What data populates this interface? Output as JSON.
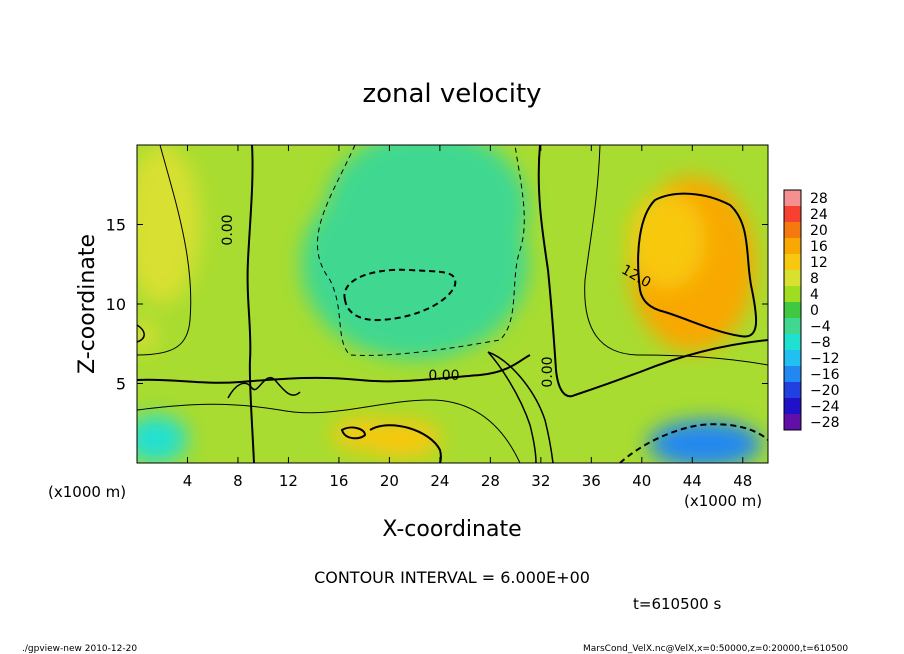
{
  "chart_data": {
    "type": "heatmap",
    "title": "zonal velocity",
    "xlabel": "X-coordinate",
    "ylabel": "Z-coordinate",
    "xlim": [
      0,
      50
    ],
    "ylim": [
      0,
      20
    ],
    "x_unit_label": "(x1000 m)",
    "z_unit_label": "(x1000 m)",
    "x_ticks": [
      "4",
      "8",
      "12",
      "16",
      "20",
      "24",
      "28",
      "32",
      "36",
      "40",
      "44",
      "48"
    ],
    "x_tick_values": [
      4,
      8,
      12,
      16,
      20,
      24,
      28,
      32,
      36,
      40,
      44,
      48
    ],
    "y_ticks": [
      "5",
      "10",
      "15"
    ],
    "y_tick_values": [
      5,
      10,
      15
    ],
    "colorbar": {
      "levels": [
        "28",
        "24",
        "20",
        "16",
        "12",
        "8",
        "4",
        "0",
        "−4",
        "−8",
        "−12",
        "−16",
        "−20",
        "−24",
        "−28"
      ],
      "colors": [
        "#f59090",
        "#f84030",
        "#f47a10",
        "#f8a800",
        "#f8c810",
        "#d8e030",
        "#a0dc20",
        "#40c840",
        "#40d890",
        "#20e0d0",
        "#20c0f0",
        "#2088f0",
        "#2040e0",
        "#2010c8",
        "#6010a8"
      ]
    },
    "contour_labels": [
      "0.00",
      "0.00",
      "0.00",
      "12.0"
    ],
    "contour_interval_text": "CONTOUR INTERVAL = 6.000E+00",
    "time_text": "t=610500 s",
    "blobs": [
      {
        "x": 20,
        "z": 10.8,
        "rx": 4.2,
        "rz": 1.8,
        "value": -14
      },
      {
        "x": 22,
        "z": 12.5,
        "rx": 9,
        "rz": 6,
        "value": -6
      },
      {
        "x": 23,
        "z": 16,
        "rx": 8,
        "rz": 5,
        "value": -6
      },
      {
        "x": 44,
        "z": 12.5,
        "rx": 5,
        "rz": 5.5,
        "value": 14
      },
      {
        "x": 42,
        "z": 14,
        "rx": 3,
        "rz": 3,
        "value": 13
      },
      {
        "x": 45,
        "z": 1.2,
        "rx": 4.5,
        "rz": 1.5,
        "value": -18
      },
      {
        "x": 21,
        "z": 1.5,
        "rx": 3,
        "rz": 1.2,
        "value": 13
      },
      {
        "x": 18,
        "z": 1.8,
        "rx": 2.5,
        "rz": 1,
        "value": 10
      },
      {
        "x": 1.5,
        "z": 1.5,
        "rx": 2.5,
        "rz": 1.5,
        "value": -8
      },
      {
        "x": 2,
        "z": 15,
        "rx": 3,
        "rz": 5,
        "value": 6
      },
      {
        "x": 0.5,
        "z": 8,
        "rx": 1,
        "rz": 1,
        "value": 9
      }
    ]
  },
  "footer": {
    "left": "./gpview-new  2010-12-20",
    "right": "MarsCond_VelX.nc@VelX,x=0:50000,z=0:20000,t=610500"
  }
}
